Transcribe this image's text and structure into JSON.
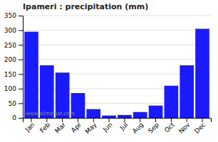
{
  "chart_data": {
    "type": "bar",
    "title": "Ipameri : precipitation (mm)",
    "categories": [
      "Jan",
      "Feb",
      "Mar",
      "Apr",
      "May",
      "Jun",
      "Jul",
      "Aug",
      "Sep",
      "Oct",
      "Nov",
      "Dec"
    ],
    "values": [
      295,
      180,
      155,
      85,
      30,
      8,
      10,
      20,
      42,
      110,
      180,
      305
    ],
    "color": "#1a1aff",
    "ylim": [
      0,
      350
    ],
    "yticks": [
      0,
      50,
      100,
      150,
      200,
      250,
      300,
      350
    ],
    "grid": true,
    "annotations": [
      "www.allmetsat.com"
    ]
  }
}
